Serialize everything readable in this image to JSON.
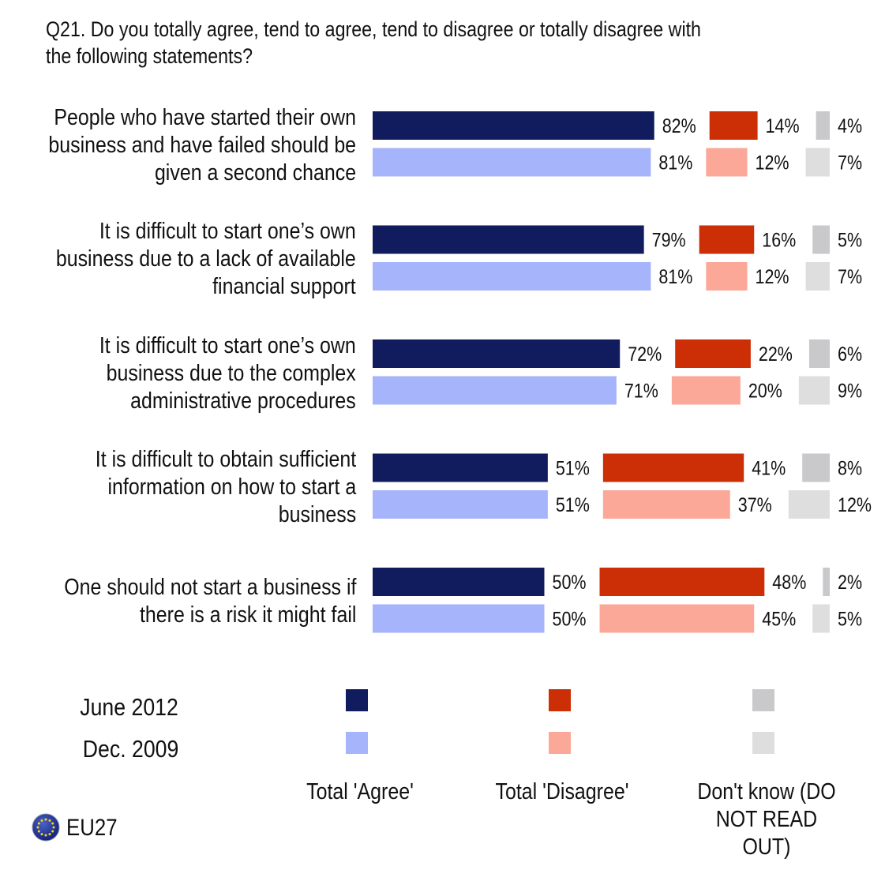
{
  "question": "Q21. Do you totally agree, tend to agree, tend to disagree or totally disagree with the following statements?",
  "colors": {
    "agree_2012": "#111C5E",
    "agree_2009": "#A6B4FB",
    "disagree_2012": "#CC2E05",
    "disagree_2009": "#FBA898",
    "dk_2012": "#C9C9CB",
    "dk_2009": "#DEDEDE"
  },
  "legend": {
    "rows": [
      "June 2012",
      "Dec. 2009"
    ],
    "categories": [
      "Total 'Agree'",
      "Total 'Disagree'",
      "Don't know (DO NOT READ OUT)"
    ]
  },
  "footer": {
    "region": "EU27",
    "icon": "eu-flag-icon"
  },
  "chart_data": {
    "type": "bar",
    "orientation": "horizontal",
    "categories": [
      [
        "People who have started their own",
        "business and have failed should be",
        "given a second chance"
      ],
      [
        "It is difficult to start one’s own",
        "business due to a lack of available",
        "financial support"
      ],
      [
        "It is difficult to start one’s own",
        "business due to the complex",
        "administrative procedures"
      ],
      [
        "It is difficult to obtain sufficient",
        "information on how to start a",
        "business"
      ],
      [
        "One should not start a business if",
        "there is a risk it might fail"
      ]
    ],
    "series": [
      {
        "name": "June 2012",
        "agree": [
          82,
          79,
          72,
          51,
          50
        ],
        "disagree": [
          14,
          16,
          22,
          41,
          48
        ],
        "dont_know": [
          4,
          5,
          6,
          8,
          2
        ]
      },
      {
        "name": "Dec. 2009",
        "agree": [
          81,
          81,
          71,
          51,
          50
        ],
        "disagree": [
          12,
          12,
          20,
          37,
          45
        ],
        "dont_know": [
          7,
          7,
          9,
          12,
          5
        ]
      }
    ],
    "unit": "%"
  }
}
